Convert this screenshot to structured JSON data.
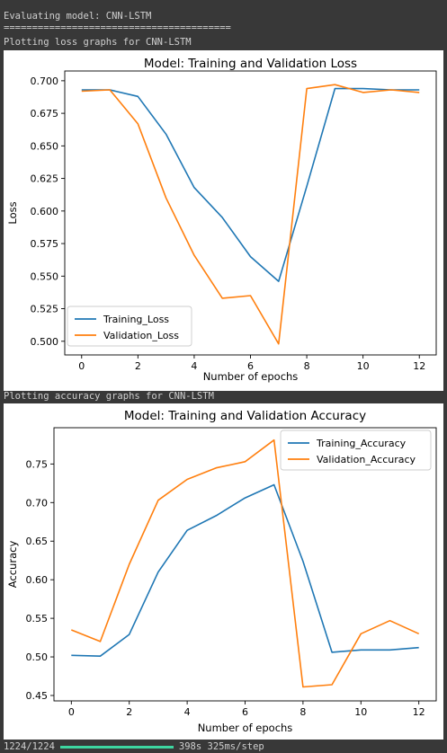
{
  "console": {
    "eval_line": "Evaluating model: CNN-LSTM",
    "separator": "========================================",
    "loss_line": "Plotting loss graphs for CNN-LSTM",
    "acc_line": "Plotting accuracy graphs for CNN-LSTM",
    "progress_count": "1224/1224",
    "progress_fraction": 1.0,
    "progress_timing": "398s 325ms/step",
    "progress_color": "#3dd6a0"
  },
  "chart_data": [
    {
      "type": "line",
      "title": "Model: Training and Validation Loss",
      "xlabel": "Number of epochs",
      "ylabel": "Loss",
      "x": [
        0,
        1,
        2,
        3,
        4,
        5,
        6,
        7,
        8,
        9,
        10,
        11,
        12
      ],
      "xticks": [
        "0",
        "2",
        "4",
        "6",
        "8",
        "10",
        "12"
      ],
      "xtick_values": [
        0,
        2,
        4,
        6,
        8,
        10,
        12
      ],
      "yticks": [
        "0.500",
        "0.525",
        "0.550",
        "0.575",
        "0.600",
        "0.625",
        "0.650",
        "0.675",
        "0.700"
      ],
      "ytick_values": [
        0.5,
        0.525,
        0.55,
        0.575,
        0.6,
        0.625,
        0.65,
        0.675,
        0.7
      ],
      "xlim": [
        -0.6,
        12.6
      ],
      "ylim": [
        0.4895,
        0.7075
      ],
      "legend": "lower-left",
      "grid": false,
      "series": [
        {
          "name": "Training_Loss",
          "color": "#1f77b4",
          "values": [
            0.693,
            0.693,
            0.688,
            0.659,
            0.618,
            0.595,
            0.565,
            0.546,
            0.619,
            0.694,
            0.694,
            0.693,
            0.693
          ]
        },
        {
          "name": "Validation_Loss",
          "color": "#ff7f0e",
          "values": [
            0.692,
            0.693,
            0.667,
            0.61,
            0.566,
            0.533,
            0.535,
            0.498,
            0.694,
            0.697,
            0.691,
            0.693,
            0.691
          ]
        }
      ]
    },
    {
      "type": "line",
      "title": "Model: Training and Validation Accuracy",
      "xlabel": "Number of epochs",
      "ylabel": "Accuracy",
      "x": [
        0,
        1,
        2,
        3,
        4,
        5,
        6,
        7,
        8,
        9,
        10,
        11,
        12
      ],
      "xticks": [
        "0",
        "2",
        "4",
        "6",
        "8",
        "10",
        "12"
      ],
      "xtick_values": [
        0,
        2,
        4,
        6,
        8,
        10,
        12
      ],
      "yticks": [
        "0.45",
        "0.50",
        "0.55",
        "0.60",
        "0.65",
        "0.70",
        "0.75"
      ],
      "ytick_values": [
        0.45,
        0.5,
        0.55,
        0.6,
        0.65,
        0.7,
        0.75
      ],
      "xlim": [
        -0.6,
        12.6
      ],
      "ylim": [
        0.443,
        0.797
      ],
      "legend": "top-right",
      "grid": false,
      "series": [
        {
          "name": "Training_Accuracy",
          "color": "#1f77b4",
          "values": [
            0.502,
            0.501,
            0.529,
            0.61,
            0.664,
            0.683,
            0.706,
            0.723,
            0.624,
            0.506,
            0.509,
            0.509,
            0.512
          ]
        },
        {
          "name": "Validation_Accuracy",
          "color": "#ff7f0e",
          "values": [
            0.535,
            0.52,
            0.62,
            0.703,
            0.73,
            0.745,
            0.753,
            0.781,
            0.461,
            0.464,
            0.53,
            0.547,
            0.53
          ]
        }
      ]
    }
  ]
}
